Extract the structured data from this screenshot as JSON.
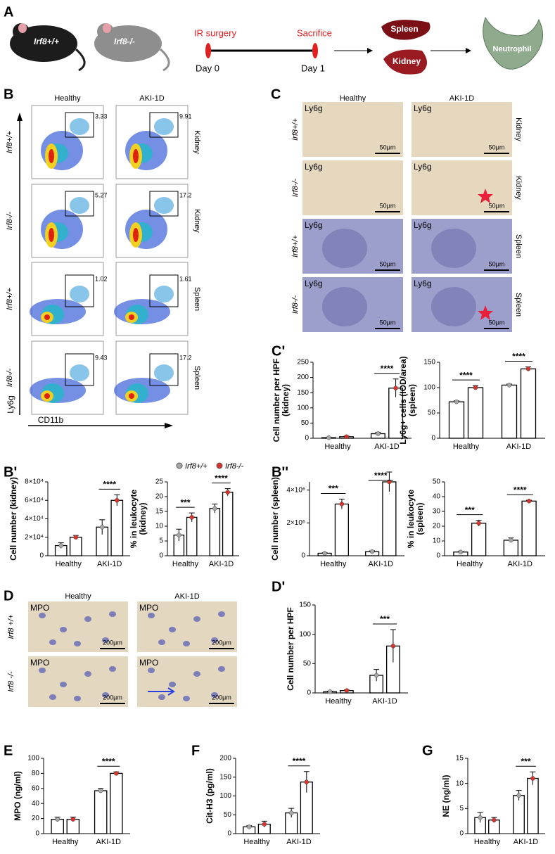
{
  "labels": [
    "A",
    "B",
    "C",
    "C'",
    "B'",
    "B''",
    "D",
    "D'",
    "E",
    "F",
    "G"
  ],
  "schema": {
    "mice": [
      "Irf8+/+",
      "Irf8-/-"
    ],
    "steps": [
      "IR surgery",
      "Sacrifice"
    ],
    "days": [
      "Day 0",
      "Day 1"
    ],
    "organs": [
      "Spleen",
      "Kidney"
    ],
    "cell": "Neutrophil"
  },
  "flow": {
    "columns": [
      "Healthy",
      "AKI-1D"
    ],
    "ylabel": "Ly6g",
    "xlabel": "CD11b",
    "rows": [
      {
        "genotype": "Irf8+/+",
        "tissue": "Kidney",
        "gates": [
          "3.33",
          "9.91"
        ]
      },
      {
        "genotype": "Irf8-/-",
        "tissue": "Kidney",
        "gates": [
          "5.27",
          "17.2"
        ]
      },
      {
        "genotype": "Irf8+/+",
        "tissue": "Spleen",
        "gates": [
          "1.02",
          "1.61"
        ]
      },
      {
        "genotype": "Irf8-/-",
        "tissue": "Spleen",
        "gates": [
          "9.43",
          "17.2"
        ]
      }
    ]
  },
  "histology_c": {
    "columns": [
      "Healthy",
      "AKI-1D"
    ],
    "stain": "Ly6g",
    "scale": "50μm",
    "rows": [
      {
        "genotype": "Irf8+/+",
        "tissue": "Kidney"
      },
      {
        "genotype": "Irf8-/-",
        "tissue": "Kidney"
      },
      {
        "genotype": "Irf8+/+",
        "tissue": "Spleen"
      },
      {
        "genotype": "Irf8-/-",
        "tissue": "Spleen"
      }
    ]
  },
  "histology_d": {
    "columns": [
      "Healthy",
      "AKI-1D"
    ],
    "stain": "MPO",
    "scale": "200μm",
    "rows": [
      "Irf8 +/+",
      "Irf8 -/-"
    ]
  },
  "legend": [
    {
      "name": "Irf8+/+",
      "color": "#a6a6a6"
    },
    {
      "name": "Irf8-/-",
      "color": "#d9342b"
    }
  ],
  "chart_data": [
    {
      "type": "bar",
      "ylabel": [
        "Cell number per HPF",
        "(kidney)"
      ],
      "categories": [
        "Healthy",
        "AKI-1D"
      ],
      "series": [
        {
          "color": "#a6a6a6",
          "values": [
            2,
            15
          ],
          "errors": [
            1,
            5
          ]
        },
        {
          "color": "#d9342b",
          "values": [
            5,
            165
          ],
          "errors": [
            2,
            30
          ]
        }
      ],
      "ylim": [
        0,
        250
      ],
      "yticks": [
        0,
        50,
        100,
        150,
        200,
        250
      ],
      "significance": [
        null,
        "****"
      ]
    },
    {
      "type": "bar",
      "ylabel": [
        "Ly6g+ cells (IOD/area)",
        "(spleen)"
      ],
      "categories": [
        "Healthy",
        "AKI-1D"
      ],
      "series": [
        {
          "color": "#a6a6a6",
          "values": [
            72,
            105
          ],
          "errors": [
            2,
            2
          ]
        },
        {
          "color": "#d9342b",
          "values": [
            100,
            137
          ],
          "errors": [
            4,
            4
          ]
        }
      ],
      "ylim": [
        0,
        150
      ],
      "yticks": [
        0,
        50,
        100,
        150
      ],
      "significance": [
        "****",
        "****"
      ]
    },
    {
      "type": "bar",
      "ylabel": [
        "Cell number (kidney)"
      ],
      "categories": [
        "Healthy",
        "AKI-1D"
      ],
      "series": [
        {
          "color": "#a6a6a6",
          "values": [
            11000,
            31000
          ],
          "errors": [
            3000,
            8000
          ]
        },
        {
          "color": "#d9342b",
          "values": [
            20000,
            60000
          ],
          "errors": [
            2000,
            6000
          ]
        }
      ],
      "ylim": [
        0,
        80000
      ],
      "yticks": [
        0,
        {
          "value": 20000,
          "label": "2×10⁴"
        },
        {
          "value": 40000,
          "label": "4×10⁴"
        },
        {
          "value": 60000,
          "label": "6×10⁴"
        },
        {
          "value": 80000,
          "label": "8×10⁴"
        }
      ],
      "significance": [
        null,
        "****"
      ]
    },
    {
      "type": "bar",
      "ylabel": [
        "% in leukocyte",
        "(kidney)"
      ],
      "categories": [
        "Healthy",
        "AKI-1D"
      ],
      "series": [
        {
          "color": "#a6a6a6",
          "values": [
            7,
            16
          ],
          "errors": [
            2,
            1.5
          ]
        },
        {
          "color": "#d9342b",
          "values": [
            13,
            21.5
          ],
          "errors": [
            1.5,
            1.2
          ]
        }
      ],
      "ylim": [
        0,
        25
      ],
      "yticks": [
        0,
        5,
        10,
        15,
        20,
        25
      ],
      "significance": [
        "***",
        "****"
      ]
    },
    {
      "type": "bar",
      "ylabel": [
        "Cell number (spleen)"
      ],
      "categories": [
        "Healthy",
        "AKI-1D"
      ],
      "series": [
        {
          "color": "#a6a6a6",
          "values": [
            150000,
            250000
          ],
          "errors": [
            30000,
            50000
          ]
        },
        {
          "color": "#d9342b",
          "values": [
            3150000,
            4500000
          ],
          "errors": [
            300000,
            600000
          ]
        }
      ],
      "ylim": [
        0,
        4500000
      ],
      "yticks": [
        0,
        {
          "value": 2000000,
          "label": "2×10⁶"
        },
        {
          "value": 4000000,
          "label": "4×10⁶"
        }
      ],
      "significance": [
        "***",
        "****"
      ]
    },
    {
      "type": "bar",
      "ylabel": [
        "% in leukocyte",
        "(spleen)"
      ],
      "categories": [
        "Healthy",
        "AKI-1D"
      ],
      "series": [
        {
          "color": "#a6a6a6",
          "values": [
            2.5,
            10.5
          ],
          "errors": [
            0.5,
            1.5
          ]
        },
        {
          "color": "#d9342b",
          "values": [
            22,
            37
          ],
          "errors": [
            2,
            0.5
          ]
        }
      ],
      "ylim": [
        0,
        50
      ],
      "yticks": [
        0,
        10,
        20,
        30,
        40,
        50
      ],
      "significance": [
        "***",
        "****"
      ]
    },
    {
      "type": "bar",
      "ylabel": [
        "Cell number per HPF"
      ],
      "categories": [
        "Healthy",
        "AKI-1D"
      ],
      "series": [
        {
          "color": "#a6a6a6",
          "values": [
            2,
            30
          ],
          "errors": [
            1,
            10
          ]
        },
        {
          "color": "#d9342b",
          "values": [
            4,
            80
          ],
          "errors": [
            1,
            28
          ]
        }
      ],
      "ylim": [
        0,
        150
      ],
      "yticks": [
        0,
        50,
        100,
        150
      ],
      "significance": [
        null,
        "***"
      ]
    },
    {
      "type": "bar",
      "ylabel": [
        "MPO (ng/ml)"
      ],
      "categories": [
        "Healthy",
        "AKI-1D"
      ],
      "series": [
        {
          "color": "#a6a6a6",
          "values": [
            19,
            57
          ],
          "errors": [
            3,
            3
          ]
        },
        {
          "color": "#d9342b",
          "values": [
            19,
            80
          ],
          "errors": [
            3,
            2
          ]
        }
      ],
      "ylim": [
        0,
        100
      ],
      "yticks": [
        0,
        20,
        40,
        60,
        80,
        100
      ],
      "significance": [
        null,
        "****"
      ]
    },
    {
      "type": "bar",
      "ylabel": [
        "Cit-H3 (pg/ml)"
      ],
      "categories": [
        "Healthy",
        "AKI-1D"
      ],
      "series": [
        {
          "color": "#a6a6a6",
          "values": [
            18,
            55
          ],
          "errors": [
            3,
            12
          ]
        },
        {
          "color": "#d9342b",
          "values": [
            25,
            137
          ],
          "errors": [
            8,
            28
          ]
        }
      ],
      "ylim": [
        0,
        200
      ],
      "yticks": [
        0,
        50,
        100,
        150,
        200
      ],
      "significance": [
        null,
        "****"
      ]
    },
    {
      "type": "bar",
      "ylabel": [
        "NE (ng/ml)"
      ],
      "categories": [
        "Healthy",
        "AKI-1D"
      ],
      "series": [
        {
          "color": "#a6a6a6",
          "values": [
            3.2,
            7.6
          ],
          "errors": [
            1,
            1
          ]
        },
        {
          "color": "#d9342b",
          "values": [
            2.7,
            11
          ],
          "errors": [
            0.5,
            1.3
          ]
        }
      ],
      "ylim": [
        0,
        15
      ],
      "yticks": [
        0,
        5,
        10,
        15
      ],
      "significance": [
        null,
        "***"
      ]
    }
  ]
}
